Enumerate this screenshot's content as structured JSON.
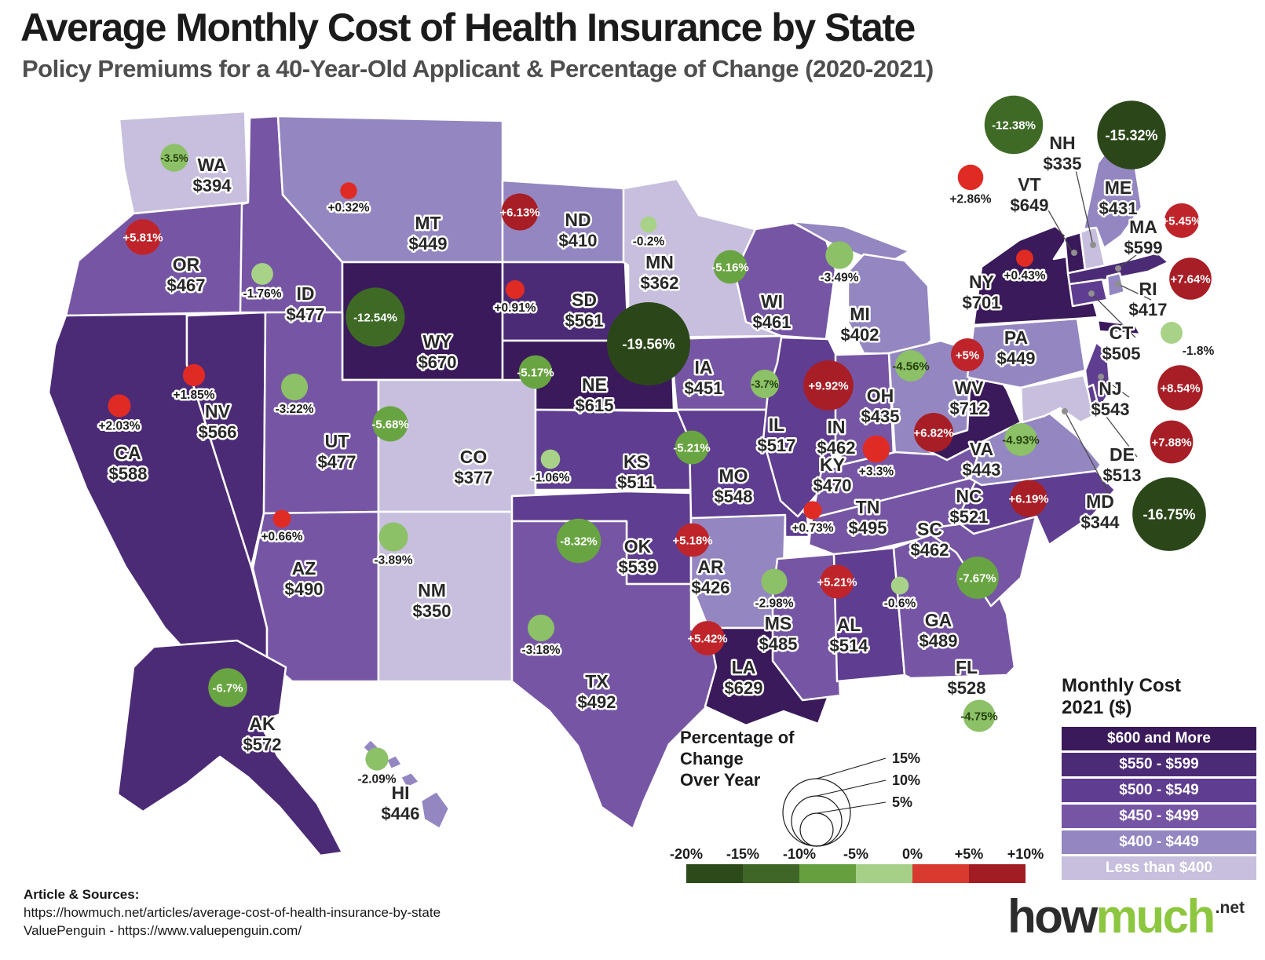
{
  "header": {
    "title": "Average Monthly Cost of Health Insurance by State",
    "subtitle": "Policy Premiums for a 40-Year-Old Applicant & Percentage of Change (2020-2021)"
  },
  "chart_data": {
    "type": "choropleth_map_with_bubbles",
    "region": "United States",
    "cost_metric": "Monthly Cost 2021 ($)",
    "change_metric": "Percentage of Change Over Year (2020-2021)",
    "states": [
      {
        "abbr": "WA",
        "cost": 394,
        "cost_display": "$394",
        "pct": -3.5,
        "pct_display": "-3.5%"
      },
      {
        "abbr": "OR",
        "cost": 467,
        "cost_display": "$467",
        "pct": 5.81,
        "pct_display": "+5.81%"
      },
      {
        "abbr": "CA",
        "cost": 588,
        "cost_display": "$588",
        "pct": 2.03,
        "pct_display": "+2.03%"
      },
      {
        "abbr": "NV",
        "cost": 566,
        "cost_display": "$566",
        "pct": 1.85,
        "pct_display": "+1.85%"
      },
      {
        "abbr": "ID",
        "cost": 477,
        "cost_display": "$477",
        "pct": -1.76,
        "pct_display": "-1.76%"
      },
      {
        "abbr": "MT",
        "cost": 449,
        "cost_display": "$449",
        "pct": 0.32,
        "pct_display": "+0.32%"
      },
      {
        "abbr": "WY",
        "cost": 670,
        "cost_display": "$670",
        "pct": -12.54,
        "pct_display": "-12.54%"
      },
      {
        "abbr": "UT",
        "cost": 477,
        "cost_display": "$477",
        "pct": -3.22,
        "pct_display": "-3.22%"
      },
      {
        "abbr": "AZ",
        "cost": 490,
        "cost_display": "$490",
        "pct": 0.66,
        "pct_display": "+0.66%"
      },
      {
        "abbr": "NM",
        "cost": 350,
        "cost_display": "$350",
        "pct": -3.89,
        "pct_display": "-3.89%"
      },
      {
        "abbr": "CO",
        "cost": 377,
        "cost_display": "$377",
        "pct": -5.68,
        "pct_display": "-5.68%"
      },
      {
        "abbr": "ND",
        "cost": 410,
        "cost_display": "$410",
        "pct": 6.13,
        "pct_display": "+6.13%"
      },
      {
        "abbr": "SD",
        "cost": 561,
        "cost_display": "$561",
        "pct": 0.91,
        "pct_display": "+0.91%"
      },
      {
        "abbr": "NE",
        "cost": 615,
        "cost_display": "$615",
        "pct": -5.17,
        "pct_display": "-5.17%"
      },
      {
        "abbr": "KS",
        "cost": 511,
        "cost_display": "$511",
        "pct": -1.06,
        "pct_display": "-1.06%"
      },
      {
        "abbr": "OK",
        "cost": 539,
        "cost_display": "$539",
        "pct": -8.32,
        "pct_display": "-8.32%"
      },
      {
        "abbr": "TX",
        "cost": 492,
        "cost_display": "$492",
        "pct": -3.18,
        "pct_display": "-3.18%"
      },
      {
        "abbr": "MN",
        "cost": 362,
        "cost_display": "$362",
        "pct": -0.2,
        "pct_display": "-0.2%"
      },
      {
        "abbr": "IA",
        "cost": 451,
        "cost_display": "$451",
        "pct": -19.56,
        "pct_display": "-19.56%"
      },
      {
        "abbr": "MO",
        "cost": 548,
        "cost_display": "$548",
        "pct": -5.21,
        "pct_display": "-5.21%"
      },
      {
        "abbr": "AR",
        "cost": 426,
        "cost_display": "$426",
        "pct": 5.18,
        "pct_display": "+5.18%"
      },
      {
        "abbr": "LA",
        "cost": 629,
        "cost_display": "$629",
        "pct": 5.42,
        "pct_display": "+5.42%"
      },
      {
        "abbr": "WI",
        "cost": 461,
        "cost_display": "$461",
        "pct": -5.16,
        "pct_display": "-5.16%"
      },
      {
        "abbr": "IL",
        "cost": 517,
        "cost_display": "$517",
        "pct": -3.7,
        "pct_display": "-3.7%"
      },
      {
        "abbr": "MI",
        "cost": 402,
        "cost_display": "$402",
        "pct": -3.49,
        "pct_display": "-3.49%"
      },
      {
        "abbr": "IN",
        "cost": 462,
        "cost_display": "$462",
        "pct": 9.92,
        "pct_display": "+9.92%"
      },
      {
        "abbr": "OH",
        "cost": 435,
        "cost_display": "$435",
        "pct": -4.56,
        "pct_display": "-4.56%"
      },
      {
        "abbr": "KY",
        "cost": 470,
        "cost_display": "$470",
        "pct": 3.3,
        "pct_display": "+3.3%"
      },
      {
        "abbr": "TN",
        "cost": 495,
        "cost_display": "$495",
        "pct": 0.73,
        "pct_display": "+0.73%"
      },
      {
        "abbr": "MS",
        "cost": 485,
        "cost_display": "$485",
        "pct": -2.98,
        "pct_display": "-2.98%"
      },
      {
        "abbr": "AL",
        "cost": 514,
        "cost_display": "$514",
        "pct": 5.21,
        "pct_display": "+5.21%"
      },
      {
        "abbr": "GA",
        "cost": 489,
        "cost_display": "$489",
        "pct": -0.6,
        "pct_display": "-0.6%"
      },
      {
        "abbr": "FL",
        "cost": 528,
        "cost_display": "$528",
        "pct": -4.75,
        "pct_display": "-4.75%"
      },
      {
        "abbr": "SC",
        "cost": 462,
        "cost_display": "$462",
        "pct": -7.67,
        "pct_display": "-7.67%"
      },
      {
        "abbr": "NC",
        "cost": 521,
        "cost_display": "$521",
        "pct": 6.19,
        "pct_display": "+6.19%"
      },
      {
        "abbr": "VA",
        "cost": 443,
        "cost_display": "$443",
        "pct": -4.93,
        "pct_display": "-4.93%"
      },
      {
        "abbr": "WV",
        "cost": 712,
        "cost_display": "$712",
        "pct": 6.82,
        "pct_display": "+6.82%"
      },
      {
        "abbr": "PA",
        "cost": 449,
        "cost_display": "$449",
        "pct": 5,
        "pct_display": "+5%"
      },
      {
        "abbr": "NY",
        "cost": 701,
        "cost_display": "$701",
        "pct": 0.43,
        "pct_display": "+0.43%"
      },
      {
        "abbr": "VT",
        "cost": 649,
        "cost_display": "$649",
        "pct": 2.86,
        "pct_display": "+2.86%"
      },
      {
        "abbr": "NH",
        "cost": 335,
        "cost_display": "$335",
        "pct": -12.38,
        "pct_display": "-12.38%"
      },
      {
        "abbr": "ME",
        "cost": 431,
        "cost_display": "$431",
        "pct": -15.32,
        "pct_display": "-15.32%"
      },
      {
        "abbr": "MA",
        "cost": 599,
        "cost_display": "$599",
        "pct": 5.45,
        "pct_display": "+5.45%"
      },
      {
        "abbr": "RI",
        "cost": 417,
        "cost_display": "$417",
        "pct": 7.64,
        "pct_display": "+7.64%"
      },
      {
        "abbr": "CT",
        "cost": 505,
        "cost_display": "$505",
        "pct": -1.8,
        "pct_display": "-1.8%"
      },
      {
        "abbr": "NJ",
        "cost": 543,
        "cost_display": "$543",
        "pct": 8.54,
        "pct_display": "+8.54%"
      },
      {
        "abbr": "DE",
        "cost": 513,
        "cost_display": "$513",
        "pct": 7.88,
        "pct_display": "+7.88%"
      },
      {
        "abbr": "MD",
        "cost": 344,
        "cost_display": "$344",
        "pct": -16.75,
        "pct_display": "-16.75%"
      },
      {
        "abbr": "AK",
        "cost": 572,
        "cost_display": "$572",
        "pct": -6.7,
        "pct_display": "-6.7%"
      },
      {
        "abbr": "HI",
        "cost": 446,
        "cost_display": "$446",
        "pct": -2.09,
        "pct_display": "-2.09%"
      }
    ]
  },
  "legend_cost": {
    "title_line1": "Monthly Cost",
    "title_line2": "2021 ($)",
    "buckets": [
      {
        "label": "$600 and More",
        "color": "#3a1a5a"
      },
      {
        "label": "$550 - $599",
        "color": "#4c2b76"
      },
      {
        "label": "$500 - $549",
        "color": "#5f3d90"
      },
      {
        "label": "$450 - $499",
        "color": "#7656a4"
      },
      {
        "label": "$400 - $449",
        "color": "#9486c1"
      },
      {
        "label": "Less than $400",
        "color": "#c7bfdd"
      }
    ]
  },
  "legend_change": {
    "title_lines": [
      "Percentage of",
      "Change",
      "Over Year"
    ],
    "size_circles": [
      {
        "label": "15%",
        "value": 15
      },
      {
        "label": "10%",
        "value": 10
      },
      {
        "label": "5%",
        "value": 5
      }
    ],
    "scale_ticks": [
      "-20%",
      "-15%",
      "-10%",
      "-5%",
      "0%",
      "+5%",
      "+10%"
    ],
    "scale_segment_colors": [
      "#2c4a1a",
      "#3f6626",
      "#66a03e",
      "#a6d088",
      "#d83a30",
      "#a11c23"
    ],
    "bubble_rules": {
      "positive": [
        {
          "min": 6,
          "color": "#a81e26"
        },
        {
          "min": 5,
          "color": "#bf242a"
        },
        {
          "min": 0,
          "color": "#e02b25"
        }
      ],
      "negative": [
        {
          "min": 15,
          "color": "#2b4719"
        },
        {
          "min": 10,
          "color": "#3e6a26"
        },
        {
          "min": 5,
          "color": "#69a442"
        },
        {
          "min": 2,
          "color": "#8cc167"
        },
        {
          "min": 0,
          "color": "#a7d287"
        }
      ]
    }
  },
  "footer": {
    "sources_heading": "Article & Sources:",
    "source_line1": "https://howmuch.net/articles/average-cost-of-health-insurance-by-state",
    "source_line2": "ValuePenguin - https://www.valuepenguin.com/"
  },
  "logo": {
    "part1": "how",
    "part2": "much",
    "suffix": ".net"
  }
}
